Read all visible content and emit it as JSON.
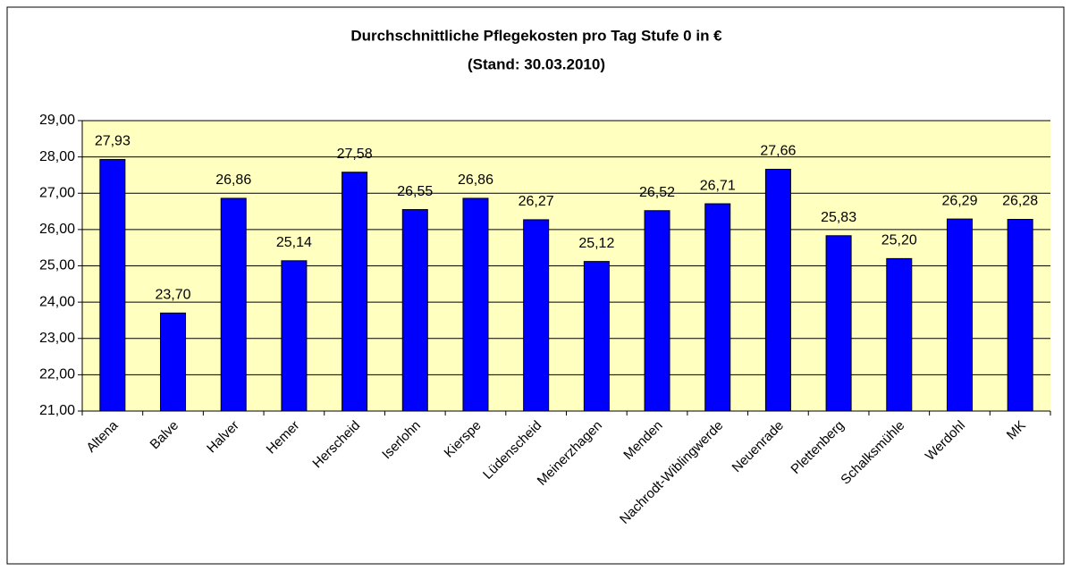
{
  "chart_data": {
    "type": "bar",
    "title": "Durchschnittliche Pflegekosten pro Tag Stufe 0 in €",
    "subtitle": "(Stand: 30.03.2010)",
    "categories": [
      "Altena",
      "Balve",
      "Halver",
      "Hemer",
      "Herscheid",
      "Iserlohn",
      "Kierspe",
      "Lüdenscheid",
      "Meinerzhagen",
      "Menden",
      "Nachrodt-Wiblingwerde",
      "Neuenrade",
      "Plettenberg",
      "Schalksmühle",
      "Werdohl",
      "MK"
    ],
    "values": [
      27.93,
      23.7,
      26.86,
      25.14,
      27.58,
      26.55,
      26.86,
      26.27,
      25.12,
      26.52,
      26.71,
      27.66,
      25.83,
      25.2,
      26.29,
      26.28
    ],
    "value_labels": [
      "27,93",
      "23,70",
      "26,86",
      "25,14",
      "27,58",
      "26,55",
      "26,86",
      "26,27",
      "25,12",
      "26,52",
      "26,71",
      "27,66",
      "25,83",
      "25,20",
      "26,29",
      "26,28"
    ],
    "color": "#0000ff",
    "ylim": [
      21,
      29
    ],
    "yticks": [
      {
        "value": 21,
        "label": "21,00"
      },
      {
        "value": 22,
        "label": "22,00"
      },
      {
        "value": 23,
        "label": "23,00"
      },
      {
        "value": 24,
        "label": "24,00"
      },
      {
        "value": 25,
        "label": "25,00"
      },
      {
        "value": 26,
        "label": "26,00"
      },
      {
        "value": 27,
        "label": "27,00"
      },
      {
        "value": 28,
        "label": "28,00"
      },
      {
        "value": 29,
        "label": "29,00"
      }
    ],
    "grid": true
  }
}
